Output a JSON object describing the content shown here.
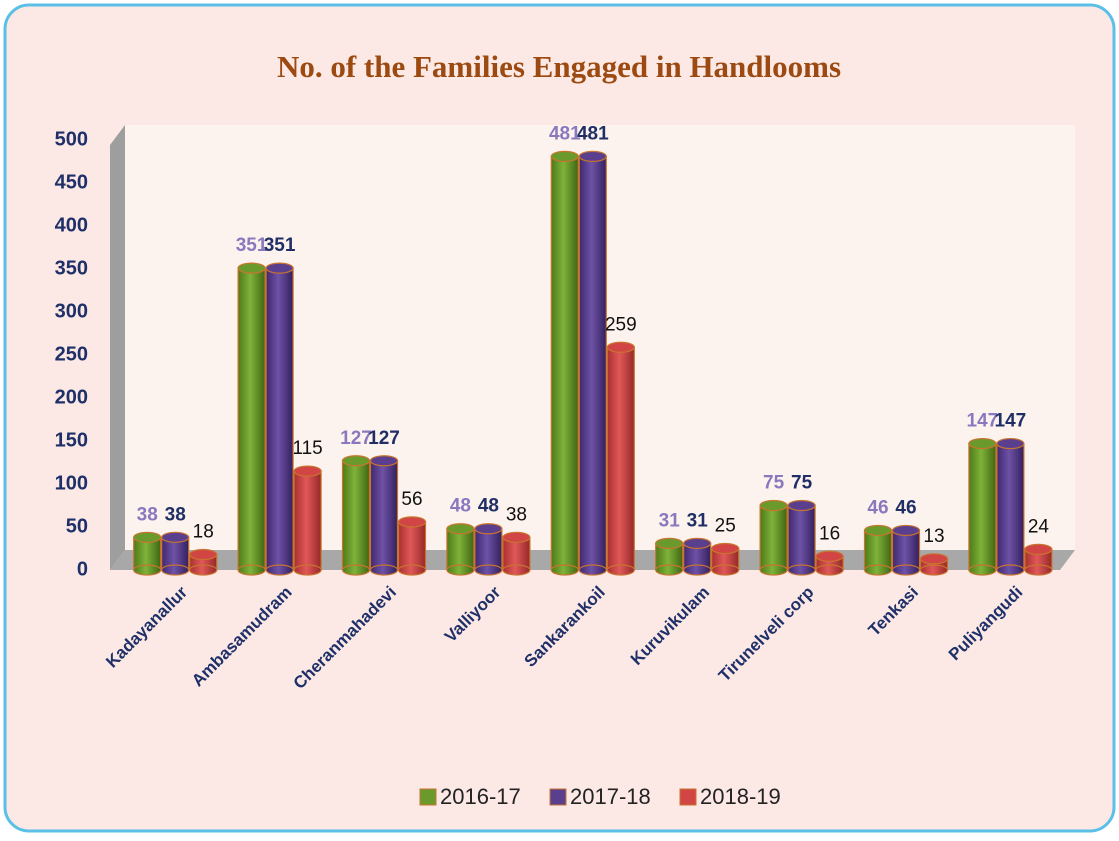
{
  "chart_data": {
    "type": "bar",
    "title": "No. of the Families Engaged in Handlooms",
    "categories": [
      "Kadayanallur",
      "Ambasamudram",
      "Cheranmahadevi",
      "Valliyoor",
      "Sankarankoil",
      "Kuruvikulam",
      "Tirunelveli corp",
      "Tenkasi",
      "Puliyangudi"
    ],
    "series": [
      {
        "name": "2016-17",
        "color": "#6b9a2c",
        "values": [
          38,
          351,
          127,
          48,
          481,
          31,
          75,
          46,
          147
        ]
      },
      {
        "name": "2017-18",
        "color": "#5b3f8f",
        "values": [
          38,
          351,
          127,
          48,
          481,
          31,
          75,
          46,
          147
        ]
      },
      {
        "name": "2018-19",
        "color": "#d24545",
        "values": [
          18,
          115,
          56,
          38,
          259,
          25,
          16,
          13,
          24
        ]
      }
    ],
    "ylim": [
      0,
      500
    ],
    "yticks": [
      0,
      50,
      100,
      150,
      200,
      250,
      300,
      350,
      400,
      450,
      500
    ],
    "legend": "bottom"
  }
}
